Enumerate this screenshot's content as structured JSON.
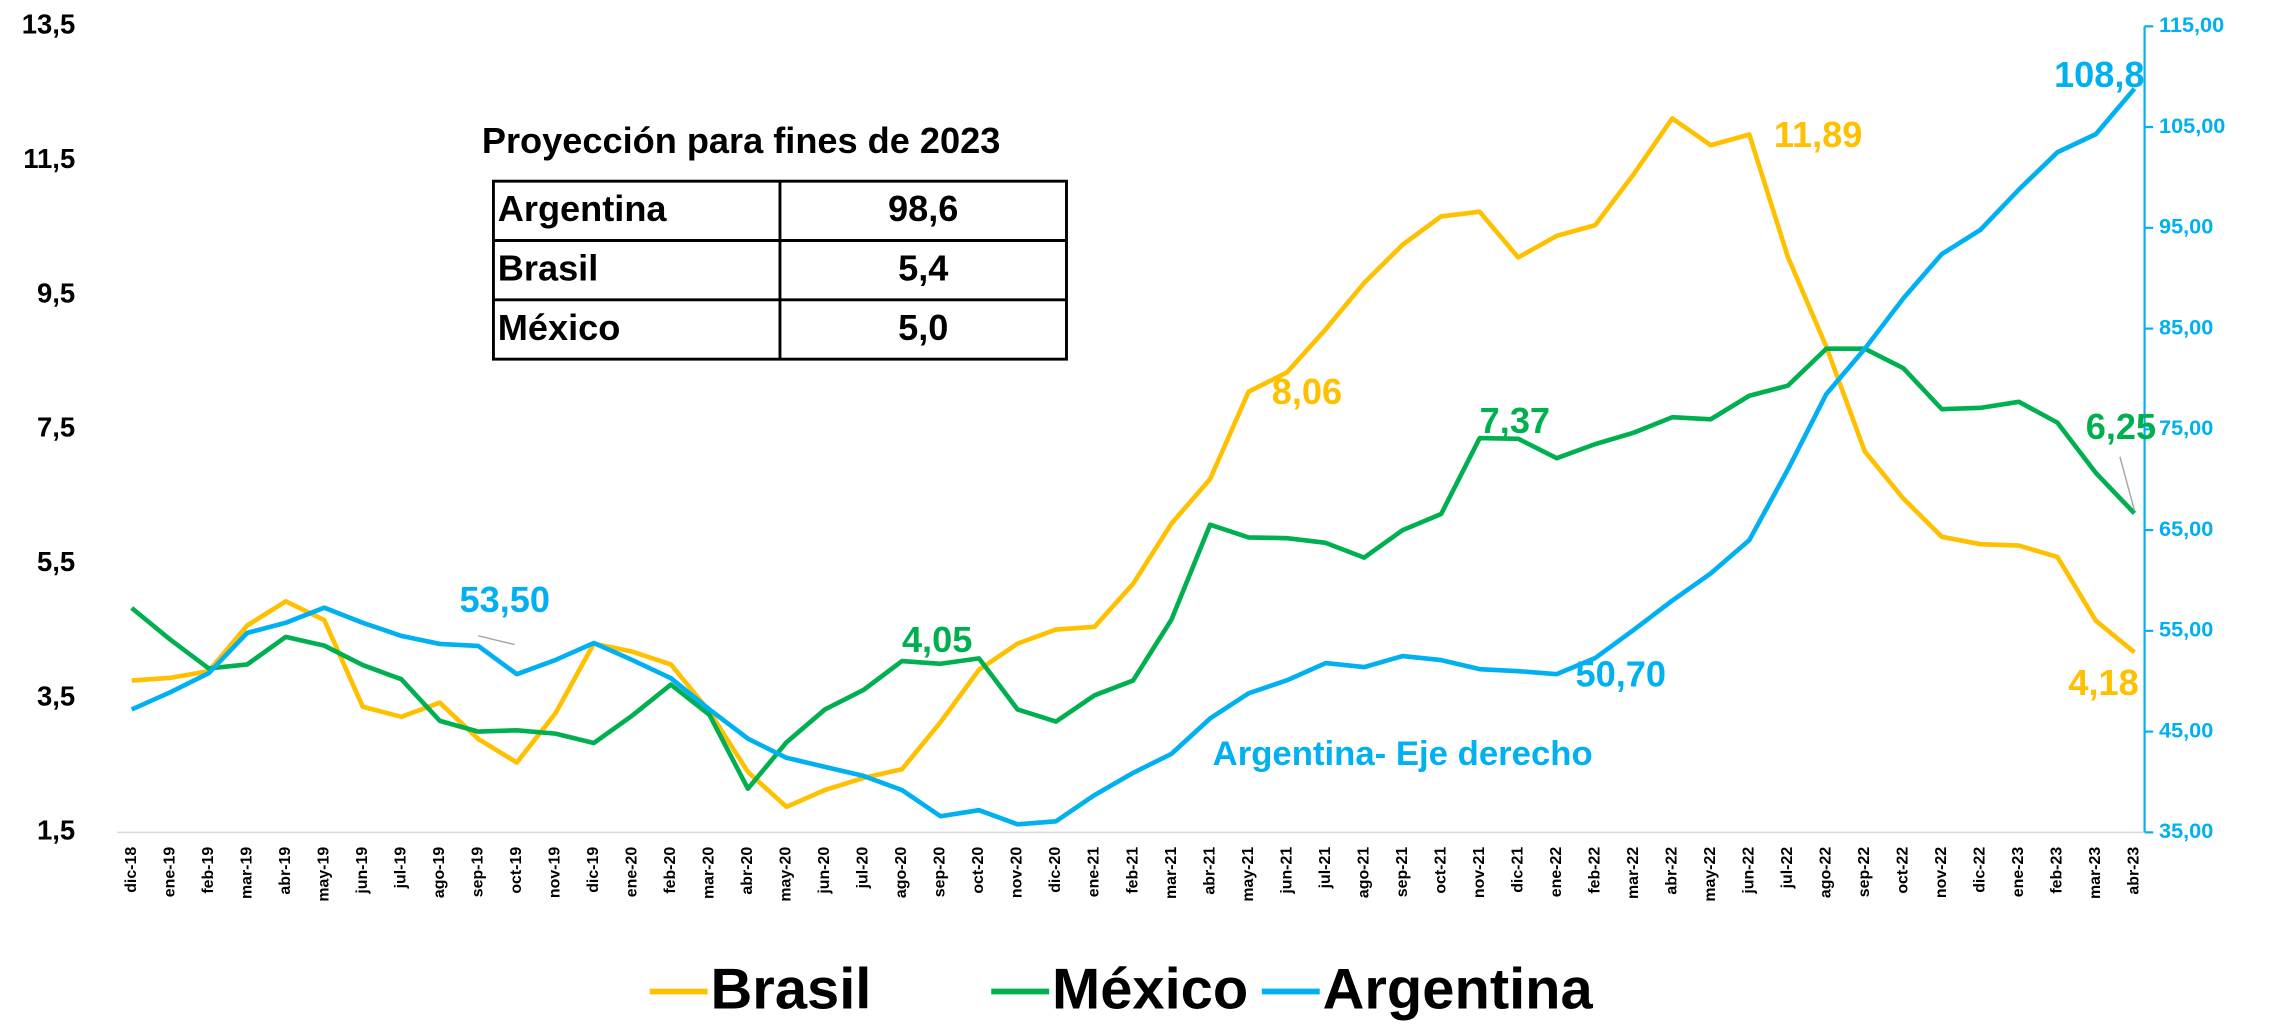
{
  "chart_data": {
    "type": "line",
    "categories": [
      "dic-18",
      "ene-19",
      "feb-19",
      "mar-19",
      "abr-19",
      "may-19",
      "jun-19",
      "jul-19",
      "ago-19",
      "sep-19",
      "oct-19",
      "nov-19",
      "dic-19",
      "ene-20",
      "feb-20",
      "mar-20",
      "abr-20",
      "may-20",
      "jun-20",
      "jul-20",
      "ago-20",
      "sep-20",
      "oct-20",
      "nov-20",
      "dic-20",
      "ene-21",
      "feb-21",
      "mar-21",
      "abr-21",
      "may-21",
      "jun-21",
      "jul-21",
      "ago-21",
      "sep-21",
      "oct-21",
      "nov-21",
      "dic-21",
      "ene-22",
      "feb-22",
      "mar-22",
      "abr-22",
      "may-22",
      "jun-22",
      "jul-22",
      "ago-22",
      "sep-22",
      "oct-22",
      "nov-22",
      "dic-22",
      "ene-23",
      "feb-23",
      "mar-23",
      "abr-23"
    ],
    "series": [
      {
        "name": "Brasil",
        "color": "#ffc000",
        "values": [
          3.76,
          3.8,
          3.9,
          4.58,
          4.94,
          4.66,
          3.37,
          3.22,
          3.43,
          2.89,
          2.54,
          3.27,
          4.31,
          4.19,
          4.0,
          3.3,
          2.4,
          1.88,
          2.13,
          2.31,
          2.44,
          3.14,
          3.92,
          4.31,
          4.52,
          4.56,
          5.2,
          6.1,
          6.76,
          8.06,
          8.35,
          8.99,
          9.68,
          10.25,
          10.67,
          10.74,
          10.06,
          10.38,
          10.54,
          11.3,
          12.13,
          11.73,
          11.89,
          10.07,
          8.73,
          7.17,
          6.47,
          5.9,
          5.79,
          5.77,
          5.6,
          4.65,
          4.18
        ],
        "value_labels": [
          null,
          null,
          null,
          null,
          null,
          null,
          null,
          null,
          null,
          null,
          null,
          null,
          null,
          null,
          null,
          null,
          null,
          null,
          null,
          null,
          null,
          null,
          null,
          null,
          null,
          null,
          null,
          null,
          null,
          "8,06",
          null,
          null,
          null,
          null,
          null,
          null,
          null,
          null,
          null,
          null,
          null,
          null,
          "11,89",
          null,
          null,
          null,
          null,
          null,
          null,
          null,
          null,
          null,
          "4,18"
        ]
      },
      {
        "name": "México",
        "color": "#00b050",
        "values": [
          4.84,
          4.37,
          3.94,
          4.0,
          4.41,
          4.28,
          3.99,
          3.78,
          3.16,
          3.0,
          3.02,
          2.97,
          2.83,
          3.24,
          3.7,
          3.25,
          2.15,
          2.84,
          3.33,
          3.62,
          4.05,
          4.01,
          4.09,
          3.33,
          3.15,
          3.54,
          3.76,
          4.67,
          6.08,
          5.89,
          5.88,
          5.81,
          5.59,
          6.0,
          6.24,
          7.37,
          7.36,
          7.07,
          7.28,
          7.45,
          7.68,
          7.65,
          8.0,
          8.15,
          8.7,
          8.7,
          8.41,
          7.8,
          7.82,
          7.91,
          7.6,
          6.85,
          6.25
        ],
        "value_labels": [
          null,
          null,
          null,
          null,
          null,
          null,
          null,
          null,
          null,
          null,
          null,
          null,
          null,
          null,
          null,
          null,
          null,
          null,
          null,
          null,
          "4,05",
          null,
          null,
          null,
          null,
          null,
          null,
          null,
          null,
          null,
          null,
          null,
          null,
          null,
          null,
          "7,37",
          null,
          null,
          null,
          null,
          null,
          null,
          null,
          null,
          null,
          null,
          null,
          null,
          null,
          null,
          null,
          null,
          "6,25"
        ]
      },
      {
        "name": "Argentina",
        "color": "#00b0f0",
        "axis": "y2",
        "values": [
          47.2,
          48.9,
          50.8,
          54.8,
          55.8,
          57.3,
          55.8,
          54.5,
          53.7,
          53.5,
          50.7,
          52.1,
          53.8,
          52.1,
          50.3,
          47.2,
          44.3,
          42.4,
          41.5,
          40.6,
          39.2,
          36.6,
          37.2,
          35.8,
          36.1,
          38.7,
          40.9,
          42.8,
          46.3,
          48.8,
          50.1,
          51.8,
          51.4,
          52.5,
          52.1,
          51.2,
          51.0,
          50.7,
          52.3,
          55.1,
          58.0,
          60.7,
          64.0,
          71.0,
          78.5,
          83.0,
          88.0,
          92.4,
          94.8,
          98.8,
          102.5,
          104.3,
          108.8
        ],
        "value_labels": [
          null,
          null,
          null,
          null,
          null,
          null,
          null,
          null,
          null,
          "53,50",
          null,
          null,
          null,
          null,
          null,
          null,
          null,
          null,
          null,
          null,
          null,
          null,
          null,
          null,
          null,
          null,
          null,
          null,
          null,
          null,
          null,
          null,
          null,
          null,
          null,
          null,
          null,
          "50,70",
          null,
          null,
          null,
          null,
          null,
          null,
          null,
          null,
          null,
          null,
          null,
          null,
          null,
          null,
          "108,8"
        ]
      }
    ],
    "ylim": [
      1.5,
      13.5
    ],
    "yticks": [
      {
        "value": 1.5,
        "label": "1,5"
      },
      {
        "value": 3.5,
        "label": "3,5"
      },
      {
        "value": 5.5,
        "label": "5,5"
      },
      {
        "value": 7.5,
        "label": "7,5"
      },
      {
        "value": 9.5,
        "label": "9,5"
      },
      {
        "value": 11.5,
        "label": "11,5"
      },
      {
        "value": 13.5,
        "label": "13,5"
      }
    ],
    "y2lim": [
      35,
      115
    ],
    "y2ticks": [
      {
        "value": 35,
        "label": "35,00"
      },
      {
        "value": 45,
        "label": "45,00"
      },
      {
        "value": 55,
        "label": "55,00"
      },
      {
        "value": 65,
        "label": "65,00"
      },
      {
        "value": 75,
        "label": "75,00"
      },
      {
        "value": 85,
        "label": "85,00"
      },
      {
        "value": 95,
        "label": "95,00"
      },
      {
        "value": 105,
        "label": "105,00"
      },
      {
        "value": 115,
        "label": "115,00"
      }
    ],
    "grid": false,
    "legend": "bottom",
    "annotation": "Argentina- Eje derecho",
    "table": {
      "title": "Proyección para fines de 2023",
      "rows": [
        [
          "Argentina",
          "98,6"
        ],
        [
          "Brasil",
          "5,4"
        ],
        [
          "México",
          "5,0"
        ]
      ]
    }
  }
}
